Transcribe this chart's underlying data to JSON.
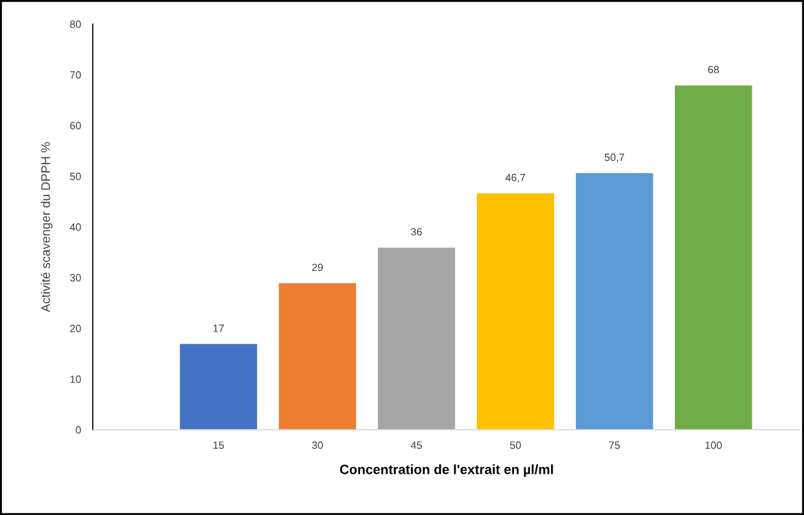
{
  "chart_data": {
    "type": "bar",
    "xlabel": "Concentration de l'extrait en µl/ml",
    "ylabel": "Activité scavenger du DPPH %",
    "categories": [
      "15",
      "30",
      "45",
      "50",
      "75",
      "100"
    ],
    "values": [
      17,
      29,
      36,
      46.7,
      50.7,
      68
    ],
    "colors": [
      "#4472c4",
      "#ed7d31",
      "#a5a5a5",
      "#ffc000",
      "#5b9bd5",
      "#70ad47"
    ],
    "value_labels": [
      "17",
      "29",
      "36",
      "46,7",
      "50,7",
      "68"
    ],
    "ylim": [
      0,
      80
    ],
    "yticks": [
      0,
      10,
      20,
      30,
      40,
      50,
      60,
      70,
      80
    ],
    "grid": false,
    "legend": false
  }
}
